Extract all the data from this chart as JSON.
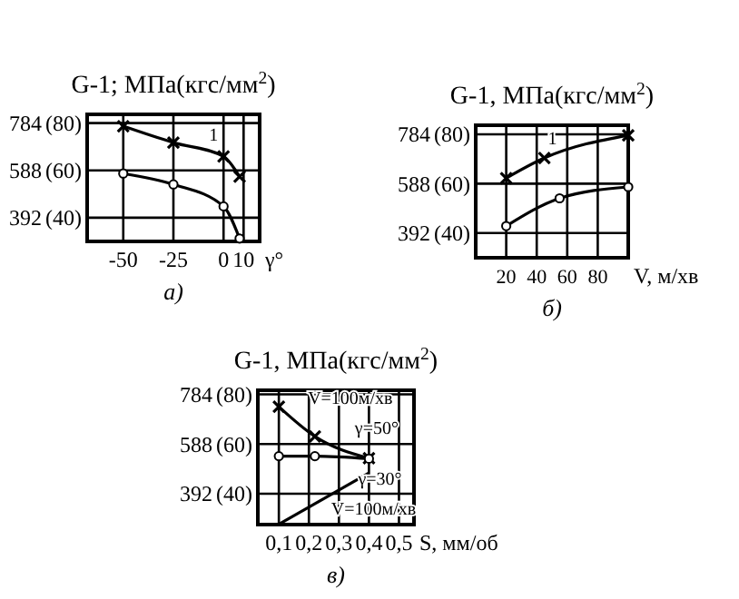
{
  "chart_data": [
    {
      "type": "line",
      "title": "G-1; МПа(кгс/мм$^{2}$)",
      "xlabel": "γ°",
      "xlim": [
        -68,
        18
      ],
      "xticks": [
        -50,
        -25,
        0,
        10
      ],
      "ylim": [
        294,
        820
      ],
      "yticks": [
        784,
        588,
        392
      ],
      "y2lim": [
        30,
        83.67
      ],
      "y2ticks": [
        {
          "value": 80,
          "label": "(80)"
        },
        {
          "value": 60,
          "label": "(60)"
        },
        {
          "value": 40,
          "label": "(40)"
        }
      ],
      "grid": true,
      "color": "#000000",
      "series": [
        {
          "x": [
            -50,
            -25,
            0,
            8
          ],
          "values": [
            771,
            703,
            646,
            562
          ],
          "marker": "cross"
        },
        {
          "x": [
            -50,
            -25,
            0,
            8
          ],
          "values": [
            575,
            530,
            439,
            306
          ],
          "marker": "circle"
        }
      ],
      "annotations": [
        {
          "text": "1",
          "x": 0,
          "y": 646
        },
        "а)"
      ]
    },
    {
      "type": "line",
      "title": "G-1, МПа(кгс/мм$^{2}$)",
      "xlabel": "V, м/хв",
      "xlim": [
        0,
        100
      ],
      "xticks": [
        20,
        40,
        60,
        80
      ],
      "ylim": [
        294,
        820
      ],
      "yticks": [
        784,
        588,
        392
      ],
      "y2lim": [
        30,
        83.67
      ],
      "y2ticks": [
        {
          "value": 80,
          "label": "(80)"
        },
        {
          "value": 60,
          "label": "(60)"
        },
        {
          "value": 40,
          "label": "(40)"
        }
      ],
      "grid": true,
      "color": "#000000",
      "series": [
        {
          "x": [
            20,
            45,
            100
          ],
          "values": [
            610,
            690,
            780
          ],
          "marker": "cross"
        },
        {
          "x": [
            20,
            55,
            100
          ],
          "values": [
            420,
            530,
            575
          ],
          "marker": "circle"
        }
      ],
      "annotations": [
        {
          "text": "1",
          "x": 45,
          "y": 690
        },
        "б)"
      ]
    },
    {
      "type": "line",
      "title": "G-1, МПа(кгс/мм$^{2}$)",
      "xlabel": "S, мм/об",
      "xlim": [
        0.03,
        0.55
      ],
      "xticks": [
        {
          "value": 0.1,
          "label": "0,1"
        },
        {
          "value": 0.2,
          "label": "0,2"
        },
        {
          "value": 0.3,
          "label": "0,3"
        },
        {
          "value": 0.4,
          "label": "0,4"
        },
        {
          "value": 0.5,
          "label": "0,5"
        }
      ],
      "ylim": [
        270,
        800
      ],
      "yticks": [
        784,
        588,
        392
      ],
      "y2lim": [
        27.55,
        81.63
      ],
      "y2ticks": [
        {
          "value": 80,
          "label": "(80)"
        },
        {
          "value": 60,
          "label": "(60)"
        },
        {
          "value": 40,
          "label": "(40)"
        }
      ],
      "grid": true,
      "color": "#000000",
      "series": [
        {
          "x": [
            0.1,
            0.22,
            0.4
          ],
          "values": [
            735,
            618,
            532
          ],
          "marker": "cross"
        },
        {
          "x": [
            0.1,
            0.22,
            0.4
          ],
          "values": [
            540,
            540,
            530
          ],
          "marker": "circle"
        },
        {
          "x": [
            0.1,
            0.4
          ],
          "values": [
            271,
            474
          ],
          "marker": "none"
        }
      ],
      "annotations": [
        {
          "text": "V=100м/хв",
          "x": 0.1,
          "y": 735
        },
        {
          "text": "γ=50°",
          "x": 0.22,
          "y": 618
        },
        {
          "text": "γ=30°",
          "x": 0.4,
          "y": 474
        },
        {
          "text": "V=100м/хв",
          "x": 0.25,
          "y": 372
        },
        "в)"
      ]
    }
  ]
}
